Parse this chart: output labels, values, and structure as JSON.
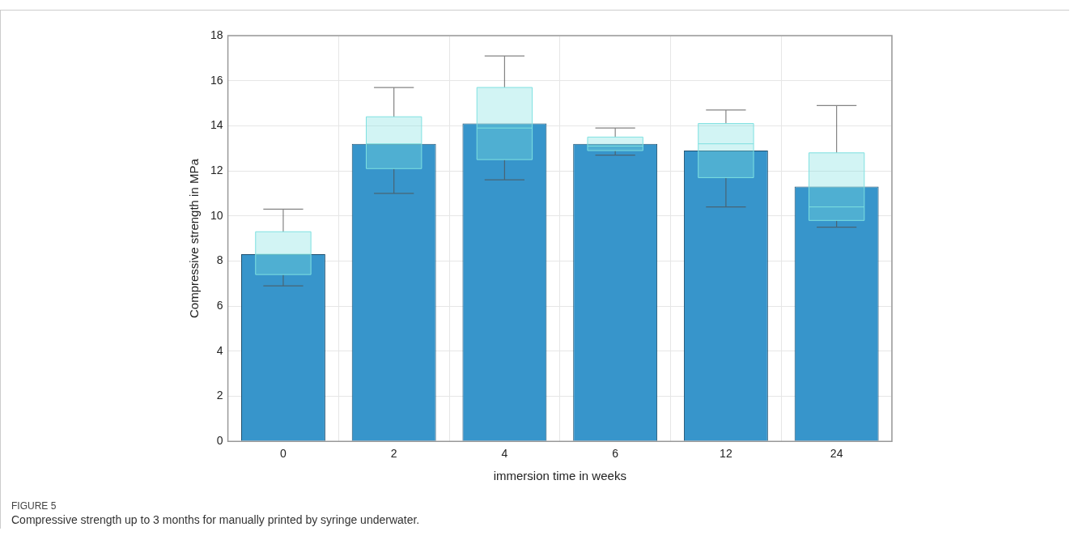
{
  "chart_data": {
    "type": "bar",
    "xlabel": "immersion time in weeks",
    "ylabel": "Compressive strength in MPa",
    "categories": [
      "0",
      "2",
      "4",
      "6",
      "12",
      "24"
    ],
    "series": [
      {
        "color": "#3795cb",
        "values": [
          8.3,
          13.2,
          14.1,
          13.2,
          12.9,
          11.3
        ]
      },
      {
        "type": "box",
        "color": "#7ee0e0",
        "boxes": [
          {
            "low": 6.9,
            "q1": 7.4,
            "median": 8.3,
            "q3": 9.3,
            "high": 10.3
          },
          {
            "low": 11.0,
            "q1": 12.1,
            "median": 13.2,
            "q3": 14.4,
            "high": 15.7
          },
          {
            "low": 11.6,
            "q1": 12.5,
            "median": 13.9,
            "q3": 15.7,
            "high": 17.1
          },
          {
            "low": 12.7,
            "q1": 12.9,
            "median": 13.1,
            "q3": 13.5,
            "high": 13.9
          },
          {
            "low": 10.4,
            "q1": 11.7,
            "median": 13.2,
            "q3": 14.1,
            "high": 14.7
          },
          {
            "low": 9.5,
            "q1": 9.8,
            "median": 10.4,
            "q3": 12.8,
            "high": 14.9
          }
        ]
      }
    ],
    "ylim": [
      0,
      18
    ],
    "yticks": [
      0,
      2,
      4,
      6,
      8,
      10,
      12,
      14,
      16,
      18
    ],
    "grid": true,
    "annotations": [
      "FIGURE 5",
      "Compressive strength up to 3 months for manually printed by syringe underwater."
    ]
  }
}
